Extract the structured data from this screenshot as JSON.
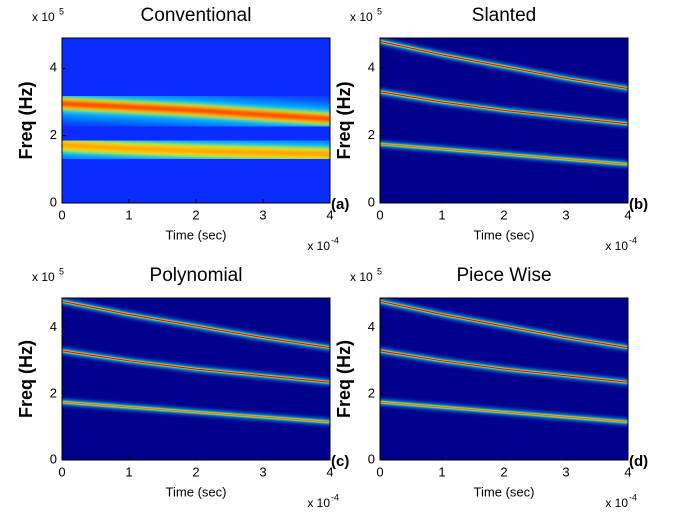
{
  "chart_data": [
    {
      "type": "heatmap",
      "title": "Conventional",
      "panel_label": "(a)",
      "x_label": "Time (sec)",
      "y_label": "Freq (Hz)",
      "x_scale": {
        "base": "x 10",
        "exponent": -4
      },
      "y_scale": {
        "base": "x 10",
        "exponent": 5
      },
      "xlim": [
        0,
        4
      ],
      "ylim": [
        0,
        4.9
      ],
      "xticks": [
        0,
        1,
        2,
        3,
        4
      ],
      "yticks": [
        0,
        2,
        4
      ],
      "background": "#0a2cff",
      "x": [
        0,
        1,
        2,
        3,
        4
      ],
      "series": [
        {
          "values": [
            2.95,
            2.85,
            2.75,
            2.62,
            2.5
          ]
        },
        {
          "values": [
            1.72,
            1.62,
            1.55,
            1.5,
            1.45
          ]
        }
      ]
    },
    {
      "type": "heatmap",
      "title": "Slanted",
      "panel_label": "(b)",
      "x_label": "Time (sec)",
      "y_label": "Freq (Hz)",
      "x_scale": {
        "base": "x 10",
        "exponent": -4
      },
      "y_scale": {
        "base": "x 10",
        "exponent": 5
      },
      "xlim": [
        0,
        4
      ],
      "ylim": [
        0,
        4.9
      ],
      "xticks": [
        0,
        1,
        2,
        3,
        4
      ],
      "yticks": [
        0,
        2,
        4
      ],
      "background": "#00008c",
      "x": [
        0,
        1,
        2,
        3,
        4
      ],
      "series": [
        {
          "values": [
            4.8,
            4.4,
            4.05,
            3.7,
            3.4
          ]
        },
        {
          "values": [
            3.3,
            3.0,
            2.75,
            2.55,
            2.35
          ]
        },
        {
          "values": [
            1.75,
            1.6,
            1.45,
            1.3,
            1.15
          ]
        }
      ]
    },
    {
      "type": "heatmap",
      "title": "Polynomial",
      "panel_label": "(c)",
      "x_label": "Time (sec)",
      "y_label": "Freq (Hz)",
      "x_scale": {
        "base": "x 10",
        "exponent": -4
      },
      "y_scale": {
        "base": "x 10",
        "exponent": 5
      },
      "xlim": [
        0,
        4
      ],
      "ylim": [
        0,
        4.9
      ],
      "xticks": [
        0,
        1,
        2,
        3,
        4
      ],
      "yticks": [
        0,
        2,
        4
      ],
      "background": "#00008c",
      "x": [
        0,
        1,
        2,
        3,
        4
      ],
      "series": [
        {
          "values": [
            4.8,
            4.4,
            4.05,
            3.7,
            3.4
          ]
        },
        {
          "values": [
            3.3,
            3.0,
            2.75,
            2.55,
            2.35
          ]
        },
        {
          "values": [
            1.75,
            1.6,
            1.45,
            1.3,
            1.15
          ]
        }
      ]
    },
    {
      "type": "heatmap",
      "title": "Piece Wise",
      "panel_label": "(d)",
      "x_label": "Time (sec)",
      "y_label": "Freq (Hz)",
      "x_scale": {
        "base": "x 10",
        "exponent": -4
      },
      "y_scale": {
        "base": "x 10",
        "exponent": 5
      },
      "xlim": [
        0,
        4
      ],
      "ylim": [
        0,
        4.9
      ],
      "xticks": [
        0,
        1,
        2,
        3,
        4
      ],
      "yticks": [
        0,
        2,
        4
      ],
      "background": "#00008c",
      "x": [
        0,
        1,
        2,
        3,
        4
      ],
      "series": [
        {
          "values": [
            4.8,
            4.4,
            4.05,
            3.7,
            3.4
          ]
        },
        {
          "values": [
            3.3,
            3.0,
            2.75,
            2.55,
            2.35
          ]
        },
        {
          "values": [
            1.75,
            1.6,
            1.45,
            1.3,
            1.15
          ]
        }
      ]
    }
  ]
}
